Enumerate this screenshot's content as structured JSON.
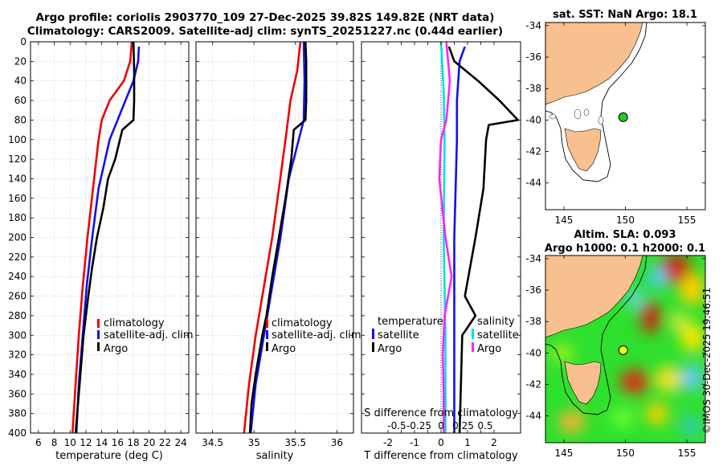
{
  "title": {
    "line1": "Argo profile: coriolis 2903770_109 27-Dec-2025 39.82S 149.82E (NRT data)",
    "line2": "Climatology: CARS2009. Satellite-adj clim: synTS_20251227.nc (0.44d earlier)"
  },
  "credit": "©IMOS 30-Dec-2025 19:46:51",
  "colors": {
    "clim": "#ee0000",
    "sat": "#1010ee",
    "argo": "#000000",
    "cyan": "#00e0e0",
    "magenta": "#ff22ff",
    "land": "#f7c08e"
  },
  "chart_data": [
    {
      "type": "line",
      "id": "temperature",
      "xlabel": "temperature (deg C)",
      "ylabel": "",
      "xlim": [
        5,
        25
      ],
      "ylim": [
        400,
        0
      ],
      "xticks": [
        6,
        8,
        10,
        12,
        14,
        16,
        18,
        20,
        22,
        24
      ],
      "yticks": [
        0,
        20,
        40,
        60,
        80,
        100,
        120,
        140,
        160,
        180,
        200,
        220,
        240,
        260,
        280,
        300,
        320,
        340,
        360,
        380,
        400
      ],
      "legend": [
        "climatology",
        "satellite-adj. clim",
        "Argo"
      ],
      "series": [
        {
          "name": "climatology",
          "color": "#ee0000",
          "depth": [
            0,
            20,
            40,
            60,
            80,
            100,
            150,
            200,
            250,
            300,
            350,
            400
          ],
          "values": [
            17.8,
            17.6,
            16.8,
            15.0,
            14.0,
            13.6,
            12.9,
            12.2,
            11.6,
            11.1,
            10.7,
            10.3
          ]
        },
        {
          "name": "satellite-adj. clim",
          "color": "#1010ee",
          "depth": [
            5,
            20,
            40,
            60,
            80,
            100,
            150,
            200,
            250,
            300,
            350,
            400
          ],
          "values": [
            18.7,
            18.6,
            18.0,
            17.0,
            16.0,
            15.0,
            13.6,
            12.8,
            12.1,
            11.6,
            11.1,
            10.8
          ]
        },
        {
          "name": "Argo",
          "color": "#000000",
          "depth": [
            0,
            30,
            60,
            80,
            90,
            100,
            120,
            140,
            170,
            200,
            230,
            260,
            300,
            340,
            370,
            400
          ],
          "values": [
            18.0,
            18.1,
            18.1,
            18.0,
            16.6,
            16.3,
            15.7,
            14.8,
            14.2,
            13.4,
            12.8,
            12.3,
            11.7,
            11.3,
            11.0,
            10.7
          ]
        }
      ]
    },
    {
      "type": "line",
      "id": "salinity",
      "xlabel": "salinity",
      "ylabel": "",
      "xlim": [
        34.3,
        36.2
      ],
      "ylim": [
        400,
        0
      ],
      "xticks": [
        34.5,
        35,
        35.5,
        36
      ],
      "legend": [
        "climatology",
        "satellite-adj. clim",
        "Argo"
      ],
      "series": [
        {
          "name": "climatology",
          "color": "#ee0000",
          "depth": [
            0,
            30,
            60,
            100,
            150,
            200,
            250,
            300,
            350,
            400
          ],
          "values": [
            35.56,
            35.52,
            35.44,
            35.38,
            35.3,
            35.22,
            35.12,
            35.02,
            34.94,
            34.88
          ]
        },
        {
          "name": "satellite-adj. clim",
          "color": "#1010ee",
          "depth": [
            0,
            40,
            80,
            100,
            140,
            200,
            250,
            300,
            350,
            400
          ],
          "values": [
            35.6,
            35.61,
            35.6,
            35.54,
            35.42,
            35.32,
            35.22,
            35.12,
            35.02,
            34.96
          ]
        },
        {
          "name": "Argo",
          "color": "#000000",
          "depth": [
            0,
            20,
            60,
            80,
            90,
            120,
            160,
            200,
            240,
            280,
            300,
            340,
            370,
            400
          ],
          "values": [
            35.62,
            35.63,
            35.63,
            35.62,
            35.48,
            35.45,
            35.38,
            35.3,
            35.22,
            35.15,
            35.1,
            35.02,
            34.97,
            34.95
          ]
        }
      ]
    },
    {
      "type": "line",
      "id": "difference",
      "xlabel": "T difference from climatology",
      "xlabel2": "S difference from climatology",
      "xlim": [
        -3,
        3
      ],
      "xlim2": [
        -0.9,
        0.9
      ],
      "ylim": [
        400,
        0
      ],
      "xticks": [
        -2,
        -1.5,
        -1,
        -0.5,
        0,
        0.5,
        1,
        1.5,
        2
      ],
      "xticklabels": [
        "-2",
        "",
        "-1",
        "",
        "0",
        "",
        "1",
        "",
        "2"
      ],
      "xticks2": [
        -0.5,
        -0.25,
        0,
        0.25,
        0.5
      ],
      "legend_left": [
        "temperature",
        "satellite",
        "Argo"
      ],
      "legend_right": [
        "salinity",
        "satellite",
        "Argo"
      ],
      "series": [
        {
          "name": "temperature satellite",
          "color": "#1010ee",
          "depth": [
            5,
            20,
            60,
            100,
            200,
            300,
            400
          ],
          "values": [
            0.9,
            0.7,
            0.6,
            0.6,
            0.5,
            0.5,
            0.5
          ]
        },
        {
          "name": "temperature Argo",
          "color": "#000000",
          "depth": [
            5,
            20,
            40,
            60,
            80,
            85,
            100,
            150,
            200,
            230,
            260,
            280,
            300,
            400
          ],
          "values": [
            0.3,
            0.5,
            1.4,
            2.2,
            2.9,
            1.8,
            1.7,
            1.6,
            1.3,
            1.1,
            0.9,
            1.3,
            0.8,
            0.7
          ]
        },
        {
          "name": "salinity satellite",
          "color": "#00e0e0",
          "depth": [
            0,
            50,
            100,
            200,
            300,
            400
          ],
          "values": [
            0.0,
            0.03,
            0.04,
            0.03,
            0.05,
            0.05
          ]
        },
        {
          "name": "salinity Argo",
          "color": "#ff22ff",
          "depth": [
            0,
            40,
            80,
            100,
            140,
            200,
            240,
            280,
            320,
            360,
            400
          ],
          "values": [
            0.06,
            0.1,
            0.06,
            0.0,
            -0.02,
            0.05,
            0.12,
            0.04,
            0.02,
            0.03,
            0.03
          ]
        }
      ]
    },
    {
      "type": "map",
      "id": "sst-map",
      "title": "sat. SST: NaN Argo: 18.1",
      "xlim": [
        143.5,
        156.5
      ],
      "ylim": [
        -45.7,
        -33.8
      ],
      "xticks": [
        145,
        150,
        155
      ],
      "yticks": [
        -34,
        -36,
        -38,
        -40,
        -42,
        -44
      ],
      "xticklabels": [
        "145",
        "150",
        "155"
      ],
      "yticklabels": [
        "-34",
        "-36",
        "-38",
        "-40",
        "-42",
        "-44"
      ],
      "marker": {
        "lon": 149.82,
        "lat": -39.82,
        "color": "#22cc22"
      }
    },
    {
      "type": "map",
      "id": "sla-map",
      "title": "Altim. SLA: 0.093",
      "subtitle": "Argo h1000: 0.1 h2000: 0.1",
      "xlim": [
        143.5,
        156.5
      ],
      "ylim": [
        -45.7,
        -33.8
      ],
      "xticks": [
        145,
        150,
        155
      ],
      "yticks": [
        -34,
        -36,
        -38,
        -40,
        -42,
        -44
      ],
      "xticklabels": [
        "145",
        "150",
        "155"
      ],
      "yticklabels": [
        "-34",
        "-36",
        "-38",
        "-40",
        "-42",
        "-44"
      ],
      "marker": {
        "lon": 149.82,
        "lat": -39.82,
        "color": "#e8ff10"
      }
    }
  ]
}
